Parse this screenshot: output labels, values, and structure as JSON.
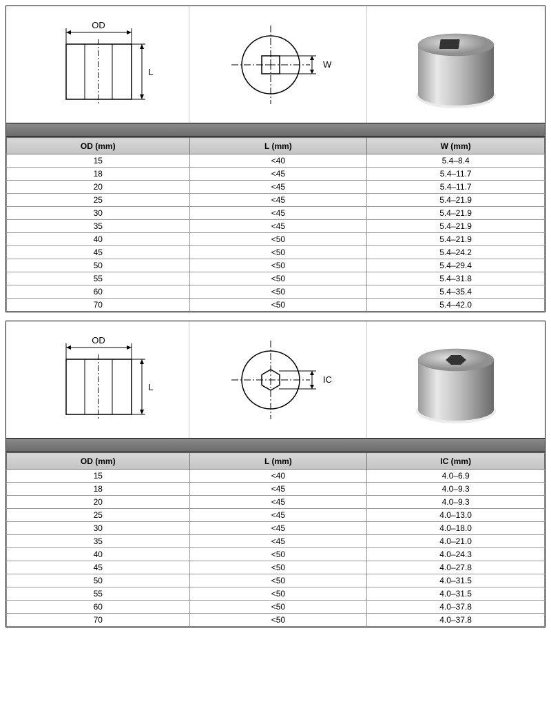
{
  "sections": [
    {
      "shape": "square",
      "dim_labels": {
        "od": "OD",
        "l": "L",
        "third": "W"
      },
      "columns": [
        "OD (mm)",
        "L (mm)",
        "W (mm)"
      ],
      "rows": [
        [
          "15",
          "<40",
          "5.4–8.4"
        ],
        [
          "18",
          "<45",
          "5.4–11.7"
        ],
        [
          "20",
          "<45",
          "5.4–11.7"
        ],
        [
          "25",
          "<45",
          "5.4–21.9"
        ],
        [
          "30",
          "<45",
          "5.4–21.9"
        ],
        [
          "35",
          "<45",
          "5.4–21.9"
        ],
        [
          "40",
          "<50",
          "5.4–21.9"
        ],
        [
          "45",
          "<50",
          "5.4–24.2"
        ],
        [
          "50",
          "<50",
          "5.4–29.4"
        ],
        [
          "55",
          "<50",
          "5.4–31.8"
        ],
        [
          "60",
          "<50",
          "5.4–35.4"
        ],
        [
          "70",
          "<50",
          "5.4–42.0"
        ]
      ]
    },
    {
      "shape": "hex",
      "dim_labels": {
        "od": "OD",
        "l": "L",
        "third": "IC"
      },
      "columns": [
        "OD (mm)",
        "L (mm)",
        "IC (mm)"
      ],
      "rows": [
        [
          "15",
          "<40",
          "4.0–6.9"
        ],
        [
          "18",
          "<45",
          "4.0–9.3"
        ],
        [
          "20",
          "<45",
          "4.0–9.3"
        ],
        [
          "25",
          "<45",
          "4.0–13.0"
        ],
        [
          "30",
          "<45",
          "4.0–18.0"
        ],
        [
          "35",
          "<45",
          "4.0–21.0"
        ],
        [
          "40",
          "<50",
          "4.0–24.3"
        ],
        [
          "45",
          "<50",
          "4.0–27.8"
        ],
        [
          "50",
          "<50",
          "4.0–31.5"
        ],
        [
          "55",
          "<50",
          "4.0–31.5"
        ],
        [
          "60",
          "<50",
          "4.0–37.8"
        ],
        [
          "70",
          "<50",
          "4.0–37.8"
        ]
      ]
    }
  ],
  "style": {
    "header_bg_from": "#d8d8d8",
    "header_bg_to": "#c4c4c4",
    "border_color": "#999999",
    "font_size_pt": 9,
    "cyl_top": "#b8b8b8",
    "cyl_side_light": "#d8d8d8",
    "cyl_side_dark": "#7a7a7a"
  }
}
